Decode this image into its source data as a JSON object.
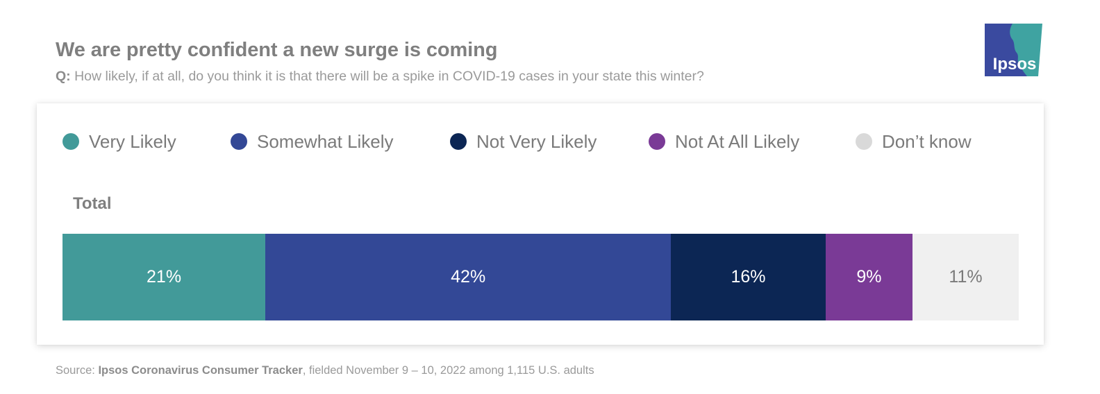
{
  "header": {
    "title": "We are pretty confident a new surge is coming",
    "question_prefix": "Q:",
    "question": " How likely, if at all, do you think it is that there will be a spike in COVID-19 cases in your state this winter?"
  },
  "logo": {
    "text": "Ipsos",
    "colors": {
      "blue": "#3a4a9f",
      "teal": "#3fa3a1"
    }
  },
  "chart_data": {
    "type": "bar",
    "orientation": "horizontal-stacked-100",
    "categories": [
      "Total"
    ],
    "series": [
      {
        "name": "Very Likely",
        "values": [
          21
        ],
        "color": "#429a99",
        "label": "21%",
        "label_color": "#ffffff"
      },
      {
        "name": "Somewhat Likely",
        "values": [
          42
        ],
        "color": "#334896",
        "label": "42%",
        "label_color": "#ffffff"
      },
      {
        "name": "Not Very Likely",
        "values": [
          16
        ],
        "color": "#0c2654",
        "label": "16%",
        "label_color": "#ffffff"
      },
      {
        "name": "Not At All Likely",
        "values": [
          9
        ],
        "color": "#7a3a96",
        "label": "9%",
        "label_color": "#ffffff"
      },
      {
        "name": "Don’t know",
        "values": [
          11
        ],
        "color": "#f0f0f0",
        "label": "11%",
        "label_color": "#7a7a7a"
      }
    ],
    "legend_position": "top",
    "grid": false
  },
  "footer": {
    "source_prefix": "Source: ",
    "source_name": "Ipsos Coronavirus Consumer Tracker",
    "source_suffix": ", fielded November 9 – 10, 2022 among 1,115 U.S. adults"
  }
}
